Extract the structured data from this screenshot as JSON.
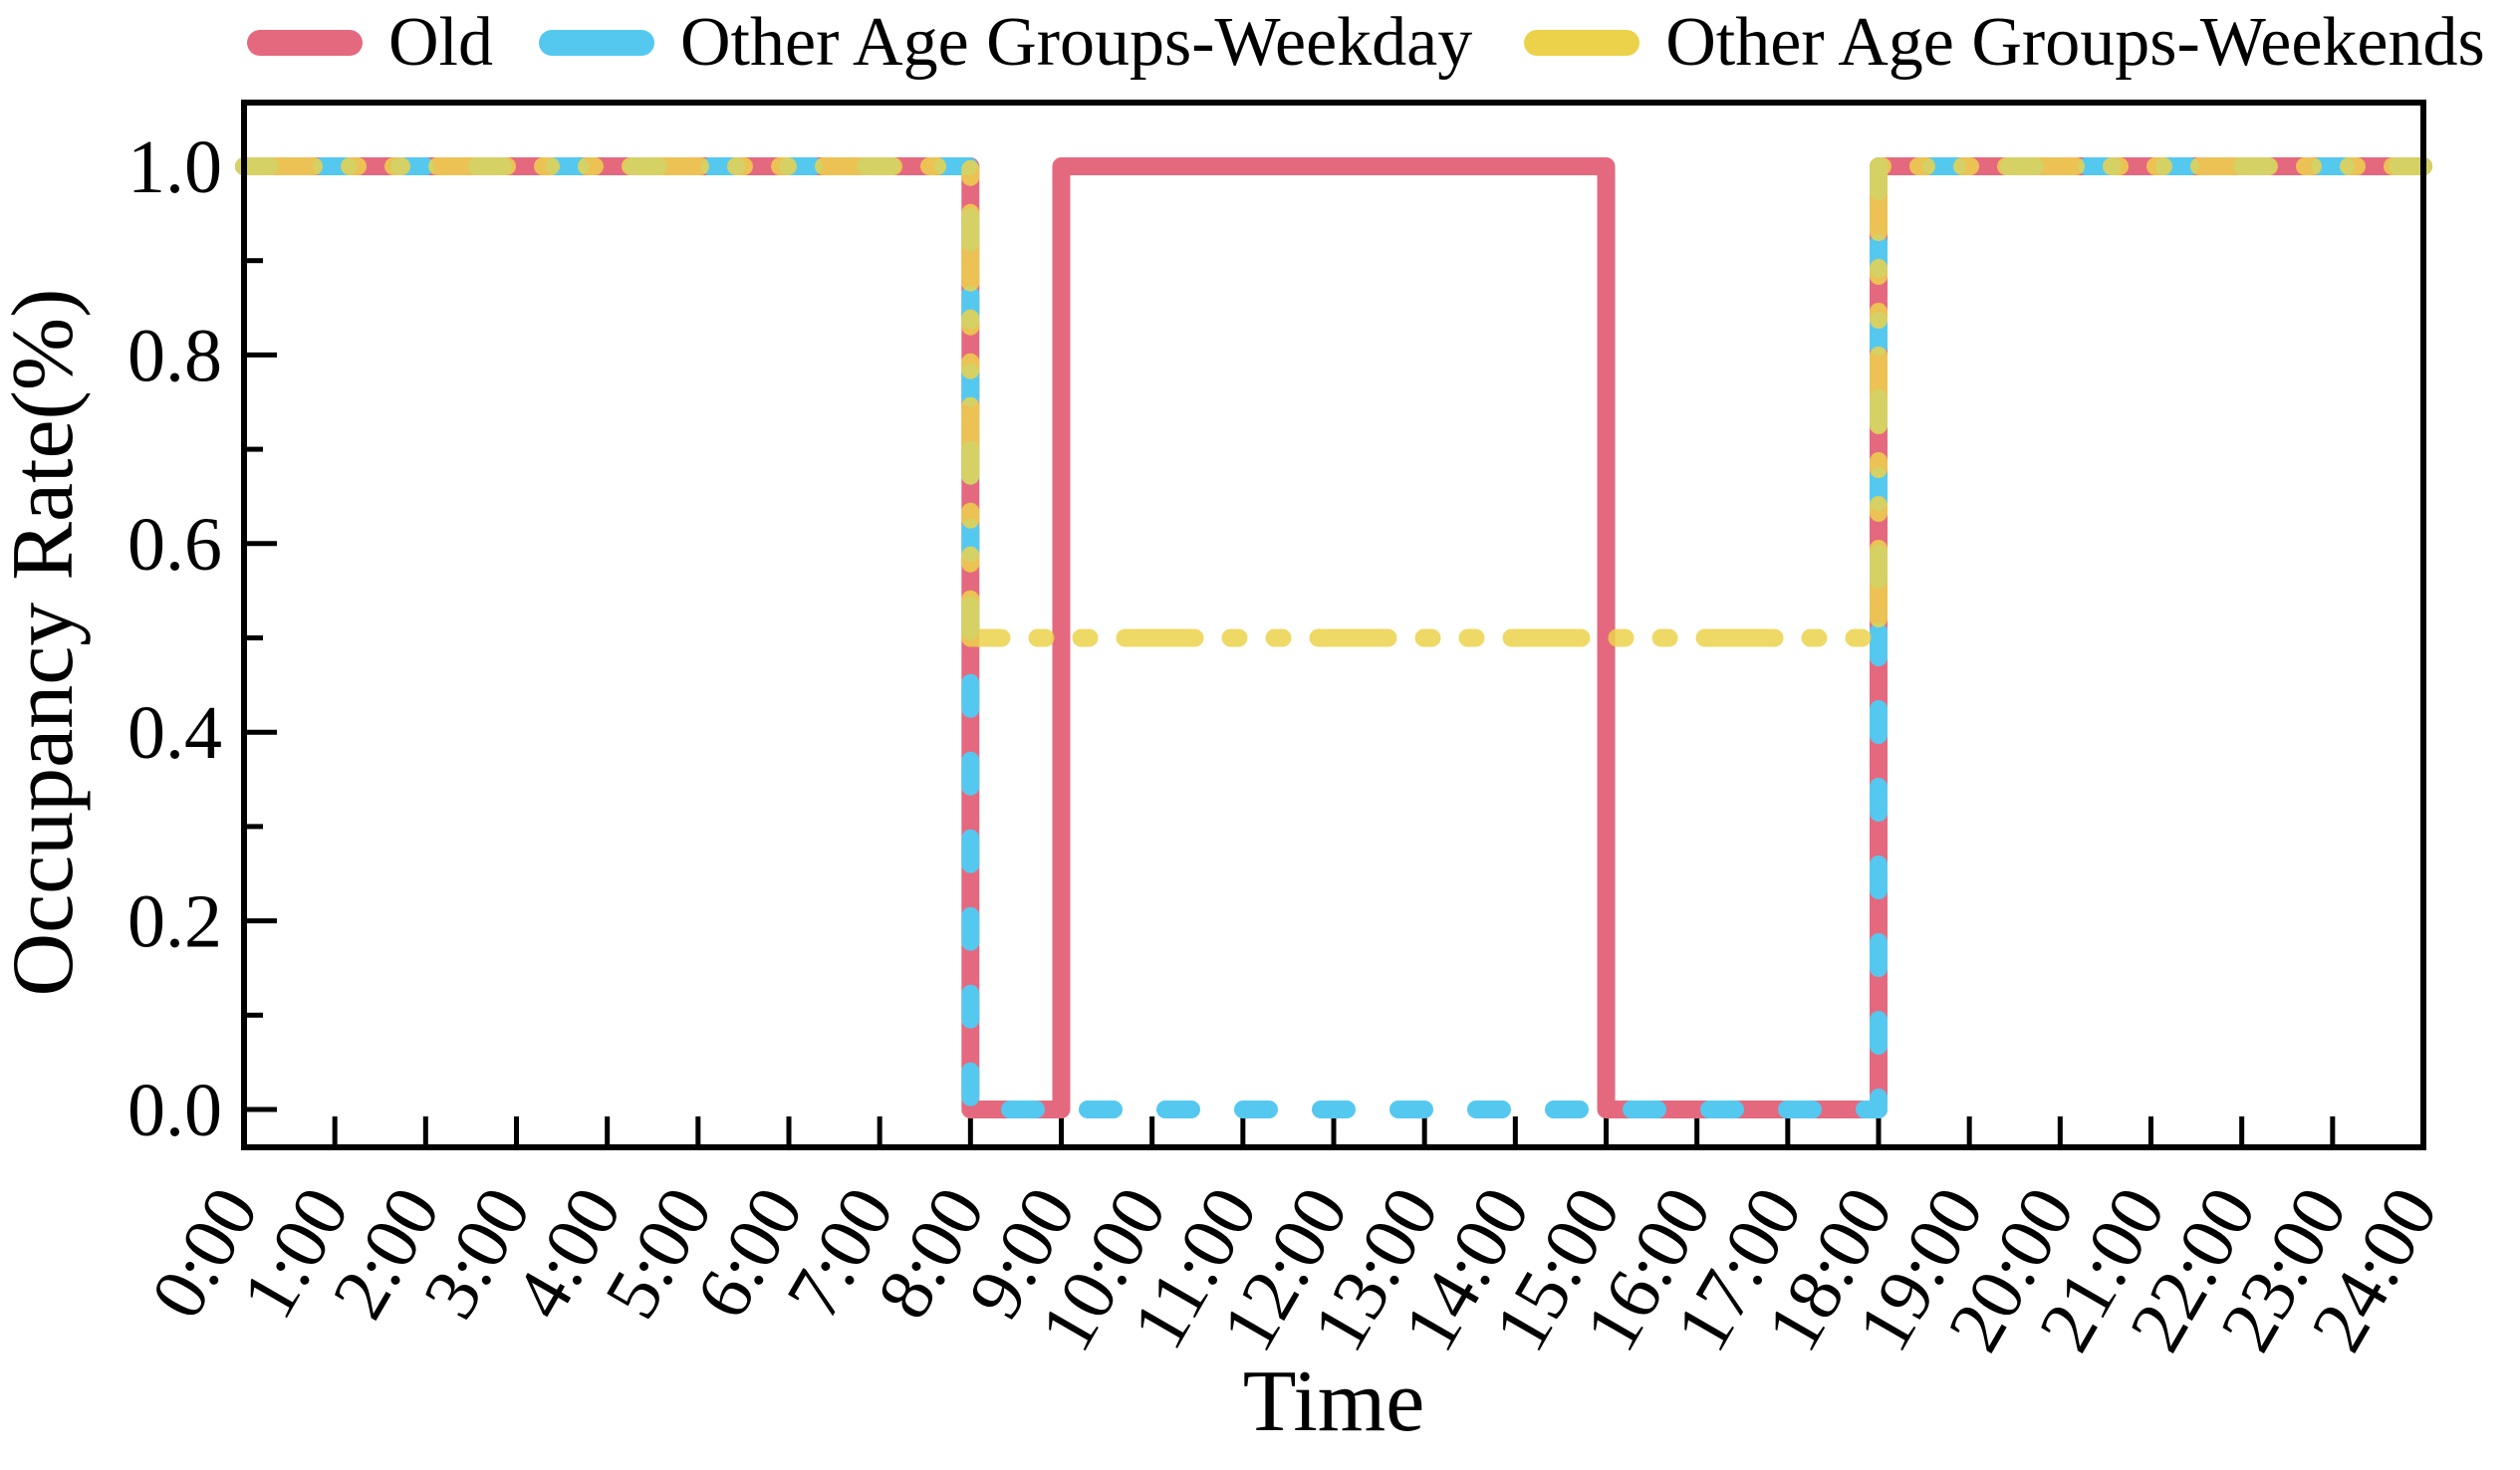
{
  "legend": {
    "items": [
      {
        "label": "Old",
        "color": "#E5697E",
        "style": "solid"
      },
      {
        "label": "Other Age Groups-Weekday",
        "color": "#55C8F0",
        "style": "dashed"
      },
      {
        "label": "Other Age Groups-Weekends",
        "color": "#ECD24B",
        "style": "dashdotdot"
      }
    ]
  },
  "chart_data": {
    "type": "line",
    "subtype": "step-schedule",
    "title": "",
    "xlabel": "Time",
    "ylabel": "Occupancy Rate(%)",
    "xlim": [
      0,
      24
    ],
    "ylim": [
      -0.05,
      1.07
    ],
    "grid": false,
    "legend_position": "top-outside",
    "x_tick_labels": [
      "0:00",
      "1:00",
      "2:00",
      "3:00",
      "4:00",
      "5:00",
      "6:00",
      "7:00",
      "8:00",
      "9:00",
      "10:00",
      "11:00",
      "12:00",
      "13:00",
      "14:00",
      "15:00",
      "16:00",
      "17:00",
      "18:00",
      "19:00",
      "20:00",
      "21:00",
      "22:00",
      "23:00",
      "24:00"
    ],
    "x_tick_hours": [
      0,
      1,
      2,
      3,
      4,
      5,
      6,
      7,
      8,
      9,
      10,
      11,
      12,
      13,
      14,
      15,
      16,
      17,
      18,
      19,
      20,
      21,
      22,
      23,
      24
    ],
    "x_tick_rotation_deg": 60,
    "y_major_ticks": [
      0.0,
      0.2,
      0.4,
      0.6,
      0.8,
      1.0
    ],
    "y_tick_labels": [
      "0.0",
      "0.2",
      "0.4",
      "0.6",
      "0.8",
      "1.0"
    ],
    "y_minor_ticks": [
      0.1,
      0.3,
      0.5,
      0.7,
      0.9
    ],
    "axis_color": "#000000",
    "series": [
      {
        "name": "Old",
        "color": "#E5697E",
        "style": "solid",
        "opacity": 1,
        "points": [
          [
            0,
            1
          ],
          [
            8,
            1
          ],
          [
            8,
            0
          ],
          [
            9,
            0
          ],
          [
            9,
            1
          ],
          [
            15,
            1
          ],
          [
            15,
            0
          ],
          [
            18,
            0
          ],
          [
            18,
            1
          ],
          [
            24,
            1
          ]
        ]
      },
      {
        "name": "Other Age Groups-Weekday",
        "color": "#55C8F0",
        "style": "dashed",
        "opacity": 1,
        "points": [
          [
            0,
            1
          ],
          [
            8,
            1
          ],
          [
            8,
            0
          ],
          [
            18,
            0
          ],
          [
            18,
            1
          ],
          [
            24,
            1
          ]
        ]
      },
      {
        "name": "Other Age Groups-Weekends",
        "color": "#ECD24B",
        "style": "dashdotdot",
        "opacity": 0.85,
        "points": [
          [
            0,
            1
          ],
          [
            8,
            1
          ],
          [
            8,
            0.5
          ],
          [
            18,
            0.5
          ],
          [
            18,
            1
          ],
          [
            24,
            1
          ]
        ]
      }
    ]
  }
}
